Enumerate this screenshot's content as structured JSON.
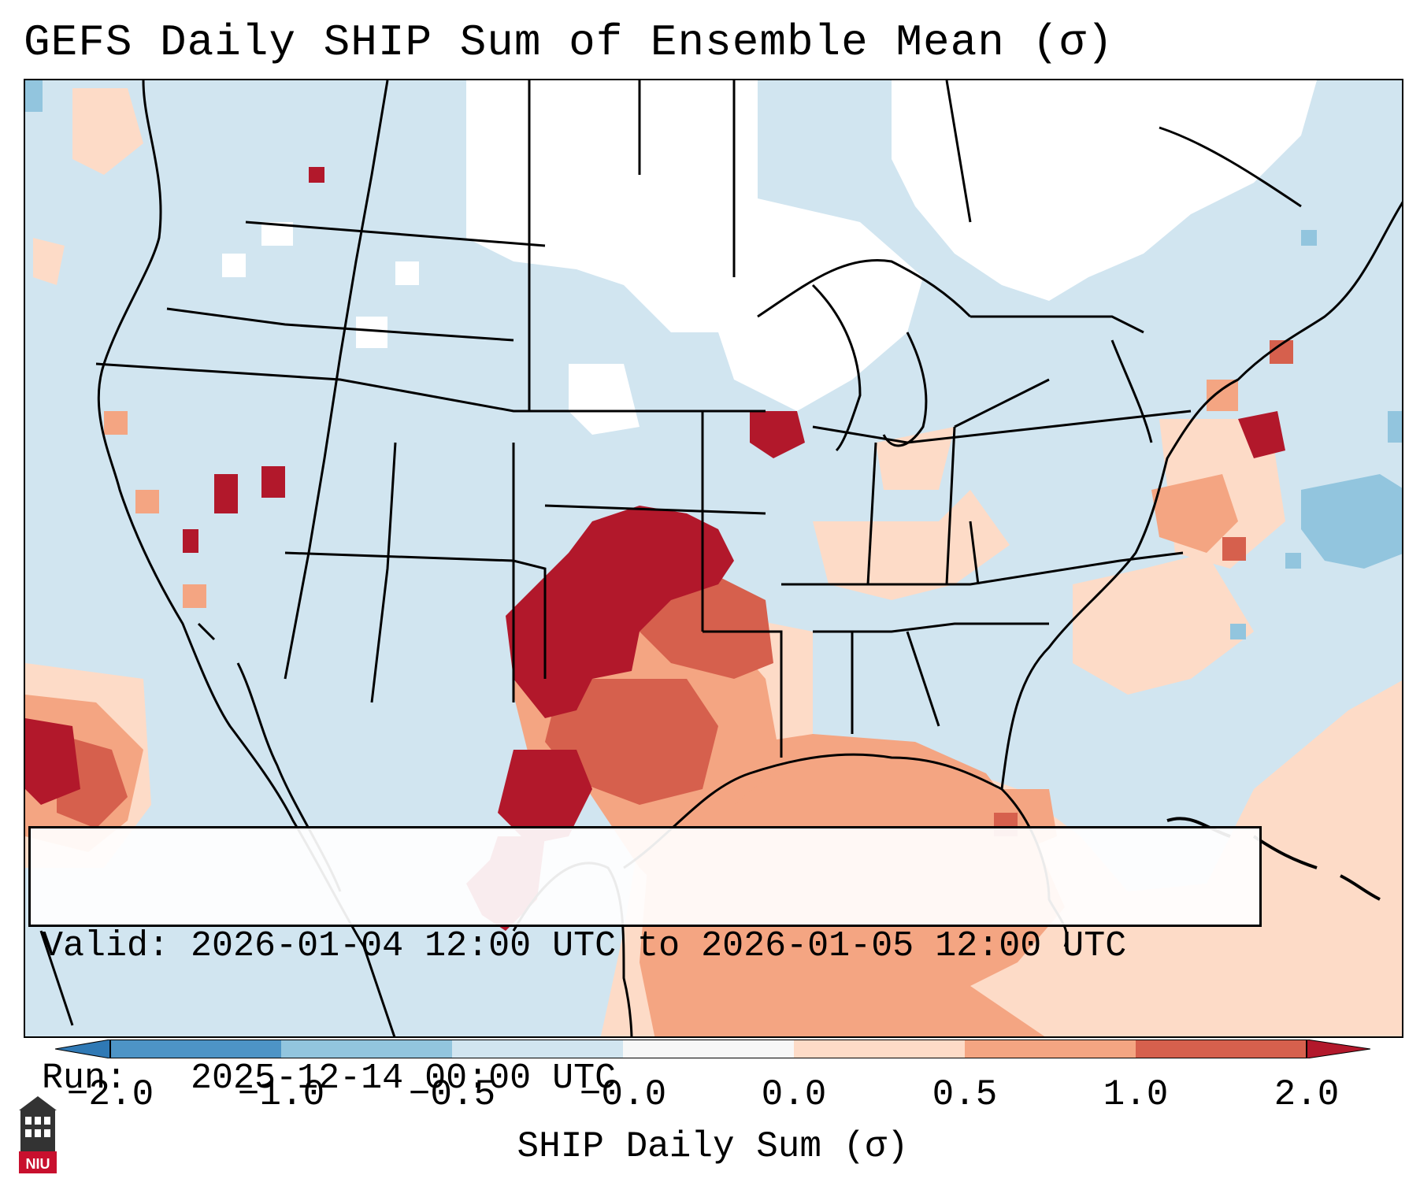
{
  "title": "GEFS Daily SHIP Sum of Ensemble Mean (σ)",
  "info": {
    "valid_label": "Valid:",
    "valid_value": "2026-01-04 12:00 UTC to 2026-01-05 12:00 UTC",
    "run_label": "Run:",
    "run_value": "2025-12-14 00:00 UTC"
  },
  "colorbar": {
    "label": "SHIP Daily Sum (σ)",
    "ticks": [
      "−2.0",
      "−1.0",
      "−0.5",
      "−0.0",
      "0.0",
      "0.5",
      "1.0",
      "2.0"
    ],
    "bins": [
      {
        "range": "< -2.0",
        "color": "#2f79b5"
      },
      {
        "range": "-2.0 to -1.0",
        "color": "#4d94c6"
      },
      {
        "range": "-1.0 to -0.5",
        "color": "#92c5de"
      },
      {
        "range": "-0.5 to -0.0",
        "color": "#d1e5f0"
      },
      {
        "range": "-0.0 to 0.0",
        "color": "#f7f7f7"
      },
      {
        "range": "0.0 to 0.5",
        "color": "#fddbc7"
      },
      {
        "range": "0.5 to 1.0",
        "color": "#f4a582"
      },
      {
        "range": "1.0 to 2.0",
        "color": "#d6604d"
      },
      {
        "range": "> 2.0",
        "color": "#b2182b"
      }
    ]
  },
  "logo": {
    "text": "NIU",
    "color": "#c8102e"
  }
}
